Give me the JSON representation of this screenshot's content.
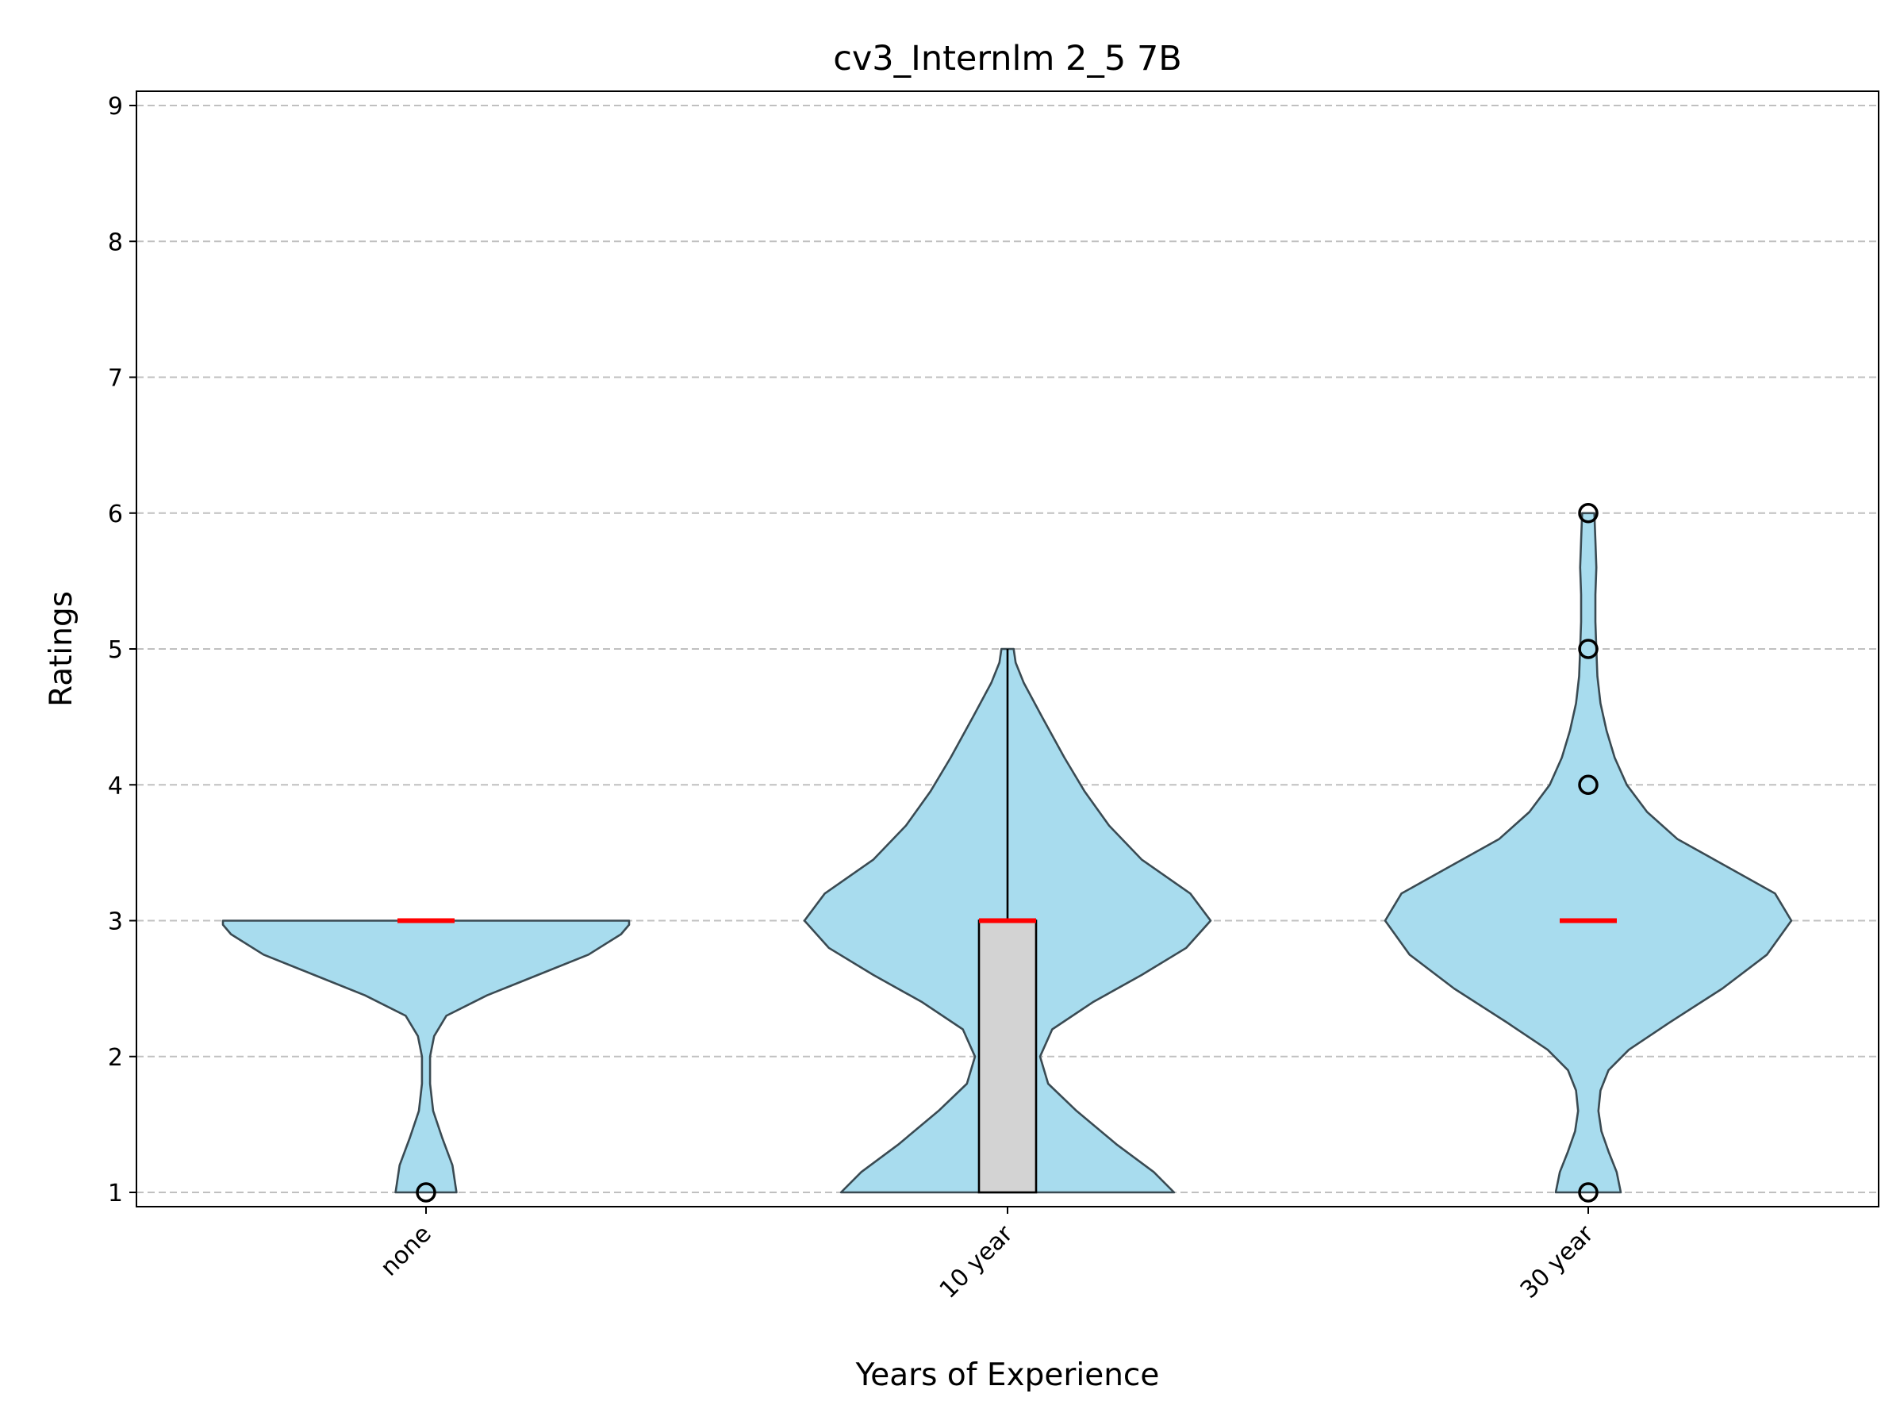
{
  "chart_data": {
    "type": "violin",
    "title": "cv3_Internlm 2_5 7B",
    "xlabel": "Years of Experience",
    "ylabel": "Ratings",
    "ylim": [
      0.9,
      9.1
    ],
    "yticks": [
      1,
      2,
      3,
      4,
      5,
      6,
      7,
      8,
      9
    ],
    "grid": "horizontal-dashed",
    "categories": [
      "none",
      "10 year",
      "30 year"
    ],
    "colors": {
      "violin_fill": "#a8dcee",
      "violin_edge": "#3a4a52",
      "median": "#ff0000",
      "box_fill": "#d3d3d3",
      "grid": "#c0c0c0"
    },
    "series": [
      {
        "category": "none",
        "range": [
          1,
          3
        ],
        "median": 3,
        "box": null,
        "outliers": [
          1
        ],
        "density": [
          [
            1.0,
            0.15
          ],
          [
            1.2,
            0.13
          ],
          [
            1.4,
            0.08
          ],
          [
            1.6,
            0.035
          ],
          [
            1.8,
            0.02
          ],
          [
            2.0,
            0.02
          ],
          [
            2.15,
            0.04
          ],
          [
            2.3,
            0.1
          ],
          [
            2.45,
            0.3
          ],
          [
            2.6,
            0.55
          ],
          [
            2.75,
            0.8
          ],
          [
            2.9,
            0.96
          ],
          [
            2.97,
            1.0
          ],
          [
            3.0,
            1.0
          ]
        ]
      },
      {
        "category": "10 year",
        "range": [
          1,
          5
        ],
        "median": 3,
        "box": [
          1,
          3
        ],
        "whisker": [
          1,
          5
        ],
        "outliers": [],
        "density": [
          [
            1.0,
            0.82
          ],
          [
            1.15,
            0.72
          ],
          [
            1.35,
            0.54
          ],
          [
            1.6,
            0.34
          ],
          [
            1.8,
            0.2
          ],
          [
            2.0,
            0.16
          ],
          [
            2.2,
            0.22
          ],
          [
            2.4,
            0.42
          ],
          [
            2.6,
            0.66
          ],
          [
            2.8,
            0.88
          ],
          [
            3.0,
            1.0
          ],
          [
            3.2,
            0.9
          ],
          [
            3.45,
            0.66
          ],
          [
            3.7,
            0.5
          ],
          [
            3.95,
            0.38
          ],
          [
            4.2,
            0.28
          ],
          [
            4.5,
            0.17
          ],
          [
            4.75,
            0.08
          ],
          [
            4.9,
            0.04
          ],
          [
            5.0,
            0.03
          ]
        ]
      },
      {
        "category": "30 year",
        "range": [
          1,
          6
        ],
        "median": 3,
        "box": null,
        "outliers": [
          1,
          4,
          5,
          6
        ],
        "density": [
          [
            1.0,
            0.16
          ],
          [
            1.15,
            0.14
          ],
          [
            1.3,
            0.1
          ],
          [
            1.45,
            0.065
          ],
          [
            1.6,
            0.05
          ],
          [
            1.75,
            0.06
          ],
          [
            1.9,
            0.1
          ],
          [
            2.05,
            0.2
          ],
          [
            2.25,
            0.4
          ],
          [
            2.5,
            0.66
          ],
          [
            2.75,
            0.88
          ],
          [
            3.0,
            1.0
          ],
          [
            3.2,
            0.92
          ],
          [
            3.4,
            0.68
          ],
          [
            3.6,
            0.44
          ],
          [
            3.8,
            0.29
          ],
          [
            4.0,
            0.19
          ],
          [
            4.2,
            0.13
          ],
          [
            4.4,
            0.09
          ],
          [
            4.6,
            0.06
          ],
          [
            4.8,
            0.045
          ],
          [
            5.0,
            0.04
          ],
          [
            5.2,
            0.035
          ],
          [
            5.4,
            0.035
          ],
          [
            5.6,
            0.04
          ],
          [
            5.8,
            0.035
          ],
          [
            6.0,
            0.03
          ]
        ]
      }
    ]
  }
}
